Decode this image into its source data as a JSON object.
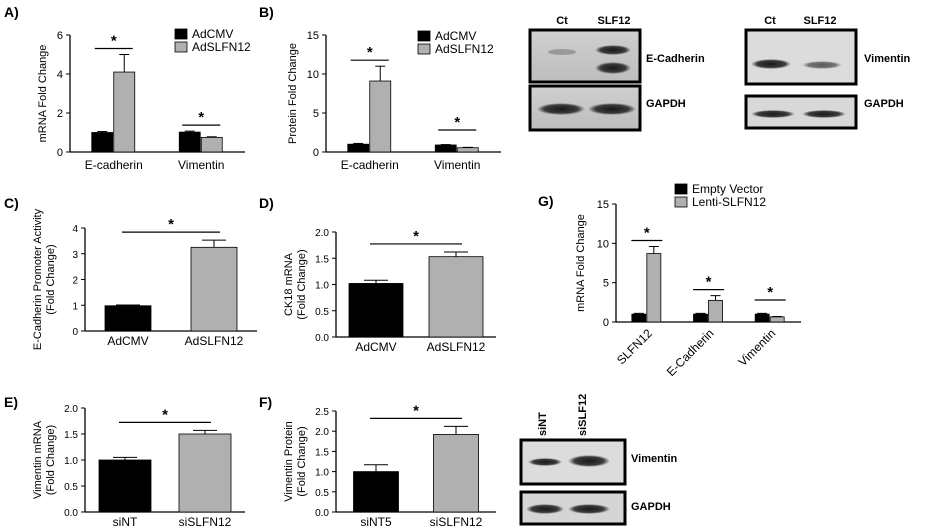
{
  "colors": {
    "black_bar": "#000000",
    "gray_bar": "#b0b0b0",
    "axis": "#000000"
  },
  "panel_labels": {
    "A": "A)",
    "B": "B)",
    "C": "C)",
    "D": "D)",
    "E": "E)",
    "F": "F)",
    "G": "G)"
  },
  "chart_data": [
    {
      "id": "A",
      "type": "bar",
      "ylabel": "mRNA Fold Change",
      "ylim": [
        0,
        6
      ],
      "yticks": [
        0,
        2,
        4,
        6
      ],
      "categories": [
        "E-cadherin",
        "Vimentin"
      ],
      "series": [
        {
          "name": "AdCMV",
          "color": "black",
          "values": [
            1.0,
            1.02
          ],
          "errors": [
            0.05,
            0.05
          ]
        },
        {
          "name": "AdSLFN12",
          "color": "gray",
          "values": [
            4.1,
            0.75
          ],
          "errors": [
            0.9,
            0.03
          ]
        }
      ],
      "significance": [
        "*",
        "*"
      ],
      "legend": "top-right"
    },
    {
      "id": "B",
      "type": "bar",
      "ylabel": "Protein Fold Change",
      "ylim": [
        0,
        15
      ],
      "yticks": [
        0,
        5,
        10,
        15
      ],
      "categories": [
        "E-cadherin",
        "Vimentin"
      ],
      "series": [
        {
          "name": "AdCMV",
          "color": "black",
          "values": [
            1.0,
            0.9
          ],
          "errors": [
            0.1,
            0.05
          ]
        },
        {
          "name": "AdSLFN12",
          "color": "gray",
          "values": [
            9.1,
            0.55
          ],
          "errors": [
            1.9,
            0.05
          ]
        }
      ],
      "significance": [
        "*",
        "*"
      ],
      "legend": "top-right"
    },
    {
      "id": "C",
      "type": "bar",
      "ylabel": [
        "E-Cadherin Promoter Activity",
        "(Fold Change)"
      ],
      "ylim": [
        0,
        4
      ],
      "yticks": [
        0,
        1,
        2,
        3,
        4
      ],
      "categories": [
        "AdCMV",
        "AdSLFN12"
      ],
      "values": [
        0.98,
        3.25
      ],
      "errors": [
        0.03,
        0.28
      ],
      "colors": [
        "black",
        "gray"
      ],
      "significance": "*"
    },
    {
      "id": "D",
      "type": "bar",
      "ylabel": [
        "CK18 mRNA",
        "(Fold Change)"
      ],
      "ylim": [
        0,
        2.0
      ],
      "yticks": [
        "0.0",
        "0.5",
        "1.0",
        "1.5",
        "2.0"
      ],
      "categories": [
        "AdCMV",
        "AdSLFN12"
      ],
      "values": [
        1.02,
        1.53
      ],
      "errors": [
        0.06,
        0.09
      ],
      "colors": [
        "black",
        "gray"
      ],
      "significance": "*"
    },
    {
      "id": "E",
      "type": "bar",
      "ylabel": [
        "Vimentin mRNA",
        "(Fold Change)"
      ],
      "ylim": [
        0,
        2.0
      ],
      "yticks": [
        "0.0",
        "0.5",
        "1.0",
        "1.5",
        "2.0"
      ],
      "categories": [
        "siNT",
        "siSLFN12"
      ],
      "values": [
        1.0,
        1.5
      ],
      "errors": [
        0.05,
        0.07
      ],
      "colors": [
        "black",
        "gray"
      ],
      "significance": "*"
    },
    {
      "id": "F",
      "type": "bar",
      "ylabel": [
        "Vimentin Protein",
        "(Fold Change)"
      ],
      "ylim": [
        0,
        2.5
      ],
      "yticks": [
        "0.0",
        "0.5",
        "1.0",
        "1.5",
        "2.0",
        "2.5"
      ],
      "categories": [
        "siNT5",
        "siSLFN12"
      ],
      "values": [
        1.0,
        1.92
      ],
      "errors": [
        0.17,
        0.2
      ],
      "colors": [
        "black",
        "gray"
      ],
      "significance": "*"
    },
    {
      "id": "G",
      "type": "bar",
      "ylabel": "mRNA Fold Change",
      "ylim": [
        0,
        15
      ],
      "yticks": [
        0,
        5,
        10,
        15
      ],
      "categories": [
        "SLFN12",
        "E-Cadherin",
        "Vimentin"
      ],
      "series": [
        {
          "name": "Empty Vector",
          "color": "black",
          "values": [
            1.0,
            1.0,
            1.0
          ],
          "errors": [
            0.1,
            0.1,
            0.1
          ]
        },
        {
          "name": "Lenti-SLFN12",
          "color": "gray",
          "values": [
            8.7,
            2.75,
            0.65
          ],
          "errors": [
            0.9,
            0.6,
            0.05
          ]
        }
      ],
      "significance": [
        "*",
        "*",
        "*"
      ],
      "legend": "top"
    }
  ],
  "blots": [
    {
      "id": "B1",
      "columns": [
        "Ct",
        "SLF12"
      ],
      "rows": [
        "E-Cadherin",
        "GAPDH"
      ]
    },
    {
      "id": "B2",
      "columns": [
        "Ct",
        "SLF12"
      ],
      "rows": [
        "Vimentin",
        "GAPDH"
      ]
    },
    {
      "id": "F1",
      "columns": [
        "siNT",
        "siSLF12"
      ],
      "rows": [
        "Vimentin",
        "GAPDH"
      ]
    }
  ]
}
